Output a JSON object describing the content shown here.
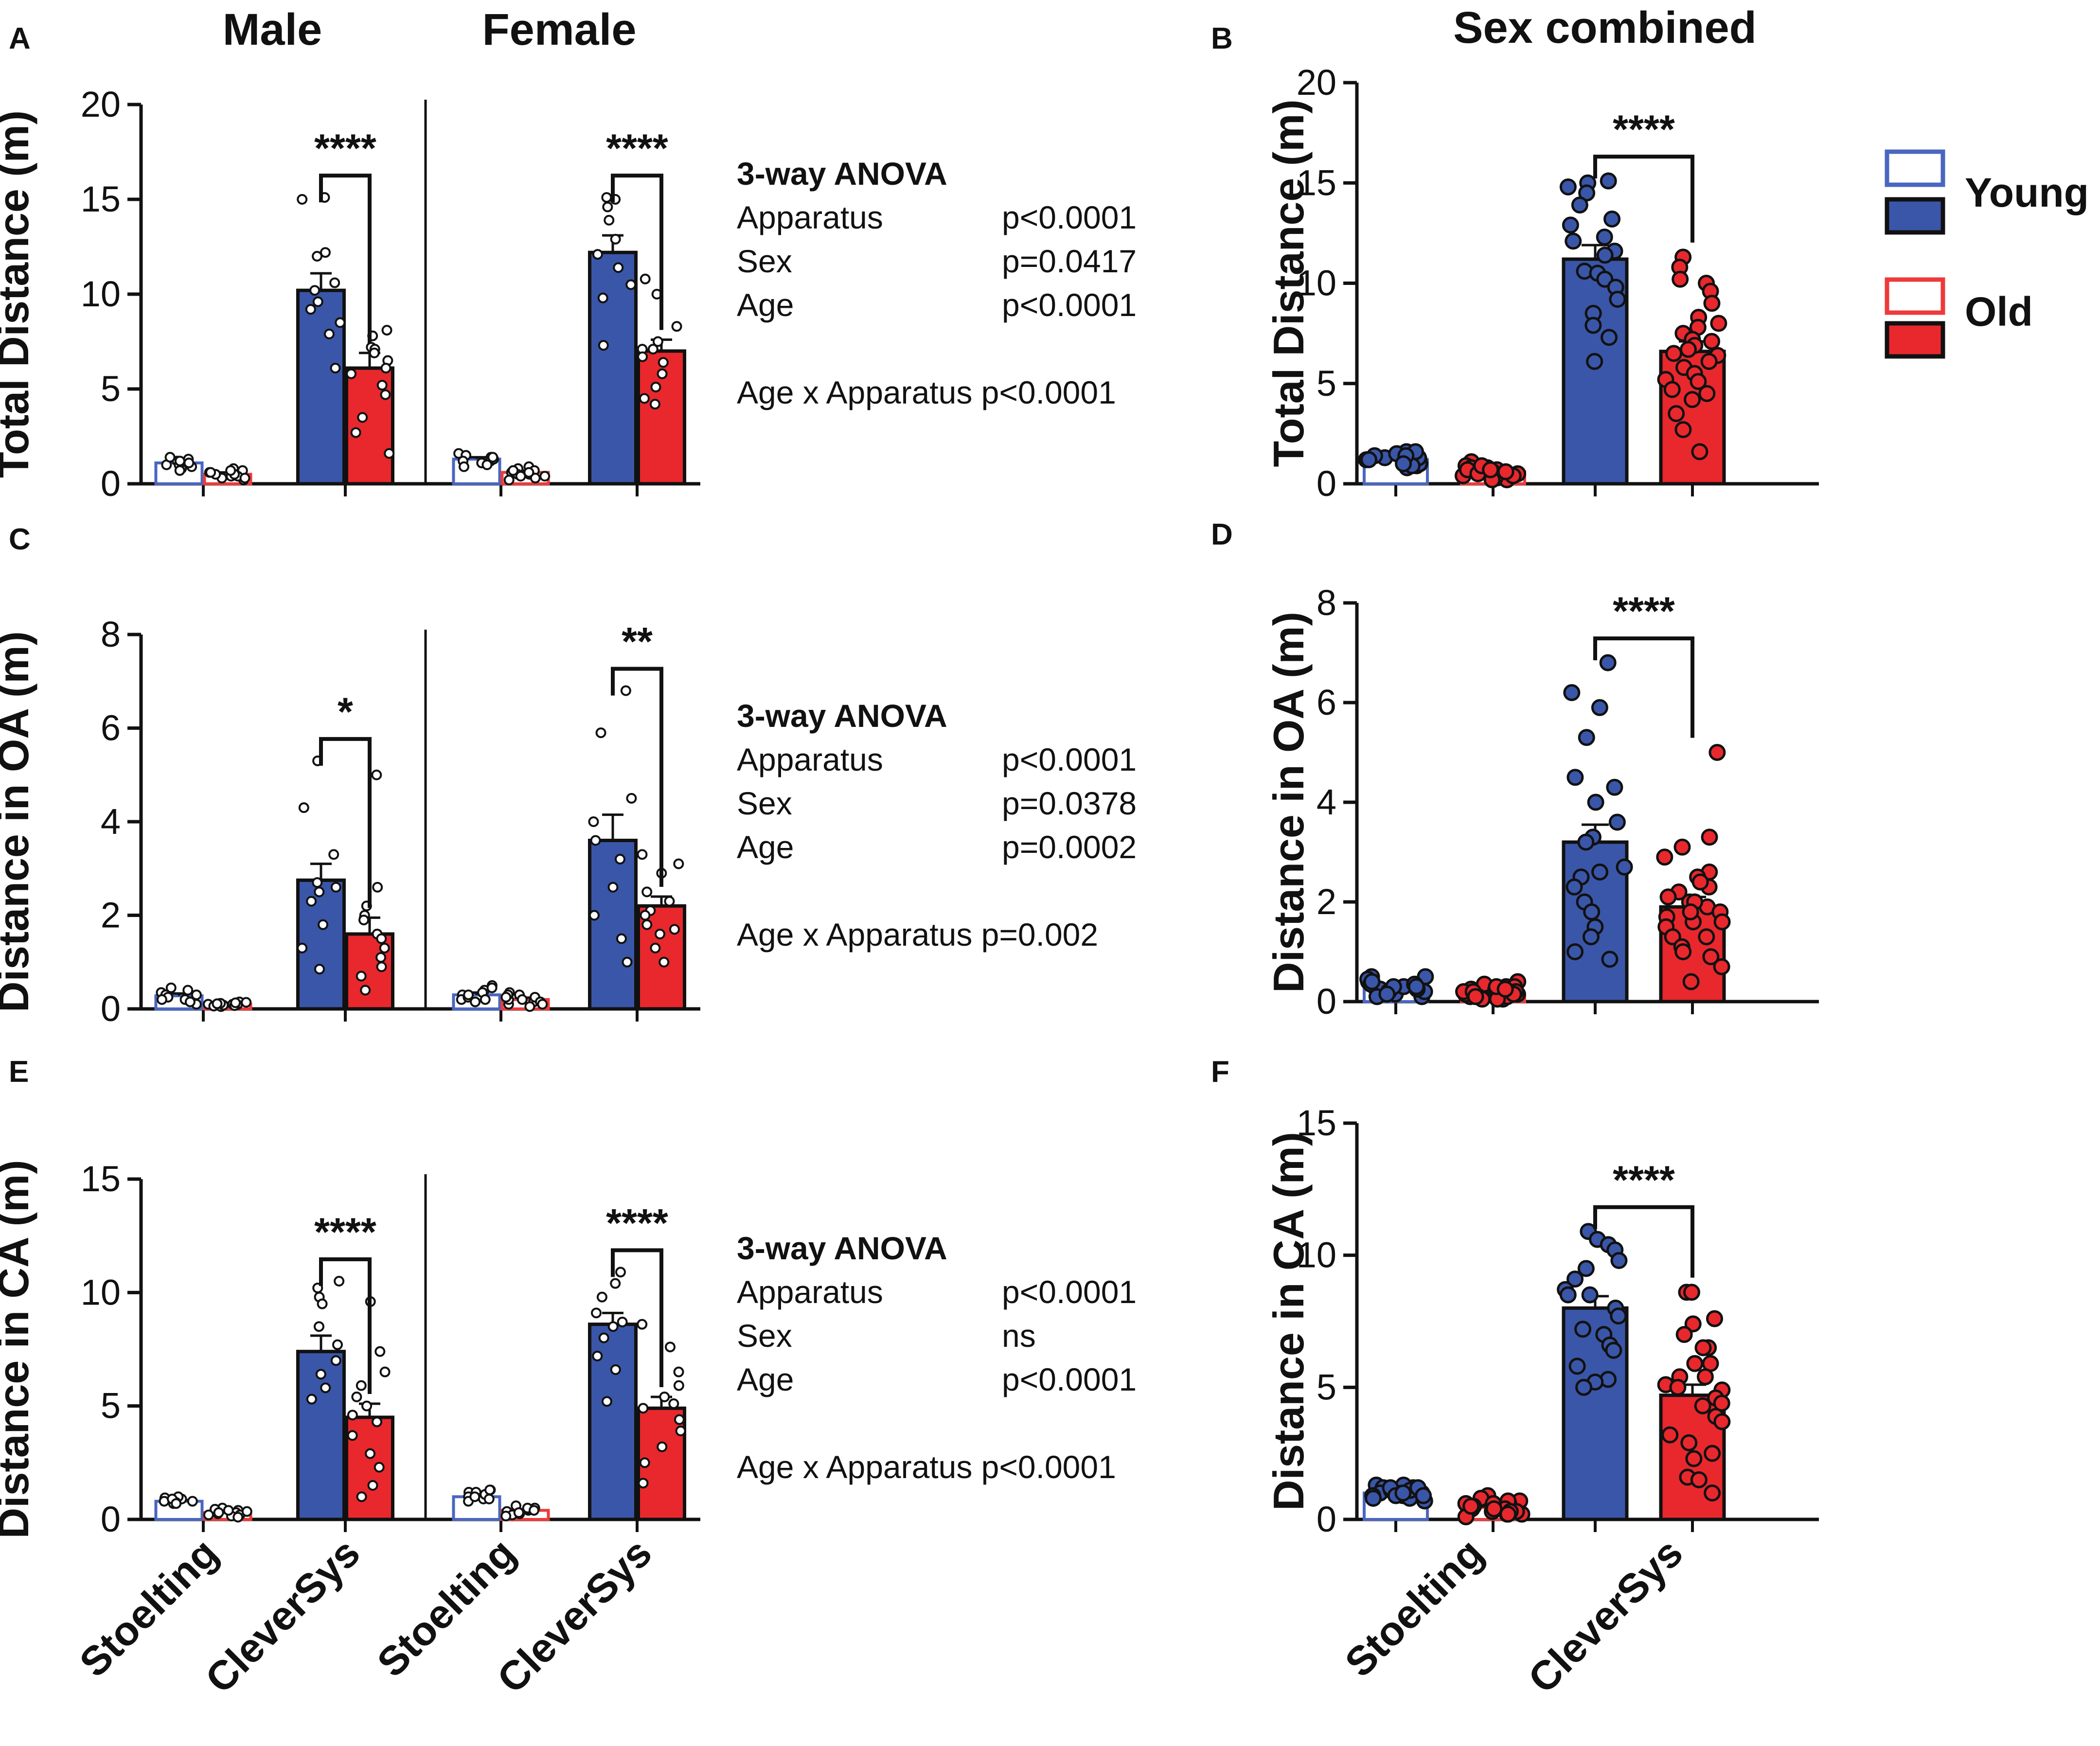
{
  "colors": {
    "young": "#3a56a8",
    "old": "#e8282d",
    "young_outline": "#4a66c0",
    "old_outline": "#ee3a3a",
    "axis": "#111111"
  },
  "legend": {
    "young_label": "Young",
    "old_label": "Old"
  },
  "headers": {
    "male": "Male",
    "female": "Female",
    "combined": "Sex combined"
  },
  "x_categories": [
    "Stoelting",
    "CleverSys",
    "Stoelting",
    "CleverSys"
  ],
  "x_categories_combined": [
    "Stoelting",
    "CleverSys"
  ],
  "anova": [
    {
      "title": "3-way ANOVA",
      "rows": [
        {
          "label": "Apparatus",
          "p": "p<0.0001"
        },
        {
          "label": "Sex",
          "p": "p=0.0417"
        },
        {
          "label": "Age",
          "p": "p<0.0001"
        }
      ],
      "interaction": "Age x Apparatus p<0.0001"
    },
    {
      "title": "3-way ANOVA",
      "rows": [
        {
          "label": "Apparatus",
          "p": "p<0.0001"
        },
        {
          "label": "Sex",
          "p": "p=0.0378"
        },
        {
          "label": "Age",
          "p": "p=0.0002"
        }
      ],
      "interaction": "Age x Apparatus p=0.002"
    },
    {
      "title": "3-way ANOVA",
      "rows": [
        {
          "label": "Apparatus",
          "p": "p<0.0001"
        },
        {
          "label": "Sex",
          "p": "ns"
        },
        {
          "label": "Age",
          "p": "p<0.0001"
        }
      ],
      "interaction": "Age x Apparatus p<0.0001"
    }
  ],
  "chart_data": [
    {
      "panel": "A",
      "type": "bar",
      "ylabel": "Total Distance (m)",
      "ylim": [
        0,
        20
      ],
      "yticks": [
        0,
        5,
        10,
        15,
        20
      ],
      "groups": [
        "Male",
        "Female"
      ],
      "categories": [
        "Stoelting",
        "CleverSys"
      ],
      "series": [
        {
          "name": "Young",
          "values": {
            "Male": [
              1.1,
              10.2
            ],
            "Female": [
              1.3,
              12.2
            ]
          }
        },
        {
          "name": "Old",
          "values": {
            "Male": [
              0.5,
              6.1
            ],
            "Female": [
              0.6,
              7.0
            ]
          }
        }
      ],
      "sem": {
        "Male": [
          [
            0.1,
            0.9
          ],
          [
            0.1,
            0.8
          ]
        ],
        "Female": [
          [
            0.1,
            0.9
          ],
          [
            0.1,
            0.6
          ]
        ]
      },
      "points": {
        "Male": [
          [
            1.0,
            1.3,
            0.8,
            1.2,
            1.4,
            0.9,
            1.1,
            1.0,
            1.2,
            0.7
          ],
          [
            0.4,
            0.6,
            0.3,
            0.7,
            0.5,
            0.2,
            0.8,
            0.4,
            0.6,
            0.5,
            0.3,
            0.7
          ],
          [
            15.0,
            15.1,
            12.2,
            12.0,
            10.6,
            10.2,
            9.6,
            9.2,
            8.5,
            7.9,
            6.1
          ],
          [
            8.1,
            7.8,
            7.2,
            7.1,
            6.9,
            6.5,
            6.1,
            5.8,
            5.2,
            4.7,
            3.5,
            2.7,
            1.6
          ]
        ],
        "Female": [
          [
            1.4,
            1.2,
            1.6,
            1.1,
            1.3,
            1.5,
            1.0,
            1.2,
            1.4,
            0.9
          ],
          [
            0.8,
            0.6,
            0.4,
            0.9,
            0.7,
            0.5,
            0.3,
            0.6,
            0.5,
            0.7,
            0.2,
            0.4
          ],
          [
            15.1,
            15.0,
            14.6,
            13.9,
            12.9,
            12.1,
            11.4,
            10.5,
            9.8,
            7.3
          ],
          [
            10.8,
            10.0,
            8.3,
            7.5,
            7.1,
            7.1,
            6.7,
            6.4,
            5.8,
            5.1,
            4.2,
            4.5
          ]
        ]
      },
      "significance": {
        "Male": "****",
        "Female": "****"
      }
    },
    {
      "panel": "B",
      "type": "bar",
      "ylabel": "Total Distance (m)",
      "ylim": [
        0,
        20
      ],
      "yticks": [
        0,
        5,
        10,
        15,
        20
      ],
      "categories": [
        "Stoelting",
        "CleverSys"
      ],
      "series": [
        {
          "name": "Young",
          "values": [
            1.2,
            11.2
          ]
        },
        {
          "name": "Old",
          "values": [
            0.6,
            6.6
          ]
        }
      ],
      "sem": [
        [
          0.1,
          0.7
        ],
        [
          0.1,
          0.5
        ]
      ],
      "points": [
        [
          1.5,
          1.2,
          1.0,
          1.4,
          1.6,
          0.9,
          1.3,
          1.1,
          1.4,
          0.8,
          1.2,
          1.5,
          1.0,
          1.3,
          1.6,
          1.1,
          0.9,
          1.2,
          1.4,
          1.0
        ],
        [
          1.1,
          0.9,
          0.6,
          0.8,
          0.4,
          0.5,
          0.7,
          0.3,
          0.6,
          0.2,
          0.5,
          0.8,
          0.4,
          0.7,
          0.3,
          0.6,
          0.5,
          0.9,
          0.2,
          0.4,
          0.6,
          0.7
        ],
        [
          15.1,
          15.0,
          14.8,
          14.5,
          13.9,
          13.2,
          12.9,
          12.3,
          12.1,
          11.6,
          11.4,
          10.6,
          10.5,
          10.2,
          9.8,
          9.2,
          8.5,
          7.9,
          7.3,
          6.1
        ],
        [
          11.3,
          10.8,
          10.2,
          10.0,
          9.6,
          9.0,
          8.3,
          8.0,
          7.8,
          7.5,
          7.2,
          7.1,
          6.9,
          6.7,
          6.5,
          6.4,
          6.1,
          5.8,
          5.5,
          5.2,
          5.1,
          4.7,
          4.5,
          4.2,
          3.5,
          2.7,
          1.6
        ]
      ],
      "significance": "****"
    },
    {
      "panel": "C",
      "type": "bar",
      "ylabel": "Distance in OA (m)",
      "ylim": [
        0,
        8
      ],
      "yticks": [
        0,
        2,
        4,
        6,
        8
      ],
      "groups": [
        "Male",
        "Female"
      ],
      "categories": [
        "Stoelting",
        "CleverSys"
      ],
      "series": [
        {
          "name": "Young",
          "values": {
            "Male": [
              0.28,
              2.75
            ],
            "Female": [
              0.3,
              3.6
            ]
          }
        },
        {
          "name": "Old",
          "values": {
            "Male": [
              0.1,
              1.6
            ],
            "Female": [
              0.2,
              2.2
            ]
          }
        }
      ],
      "sem": {
        "Male": [
          [
            0.05,
            0.35
          ],
          [
            0.03,
            0.35
          ]
        ],
        "Female": [
          [
            0.05,
            0.55
          ],
          [
            0.04,
            0.2
          ]
        ]
      },
      "points": {
        "Male": [
          [
            0.35,
            0.2,
            0.45,
            0.3,
            0.1,
            0.4,
            0.25,
            0.15,
            0.3,
            0.2
          ],
          [
            0.1,
            0.05,
            0.15,
            0.08,
            0.12,
            0.1,
            0.06,
            0.14,
            0.09,
            0.11,
            0.07,
            0.13
          ],
          [
            5.3,
            4.3,
            3.3,
            2.7,
            2.5,
            2.3,
            2.6,
            1.8,
            1.3,
            0.85
          ],
          [
            5.0,
            2.6,
            2.0,
            1.6,
            1.5,
            1.3,
            1.1,
            0.9,
            0.7,
            0.4,
            1.9,
            2.2
          ]
        ],
        "Female": [
          [
            0.4,
            0.3,
            0.5,
            0.2,
            0.35,
            0.25,
            0.45,
            0.15,
            0.3,
            0.2
          ],
          [
            0.3,
            0.2,
            0.15,
            0.25,
            0.1,
            0.35,
            0.2,
            0.05,
            0.3,
            0.15,
            0.25,
            0.1
          ],
          [
            6.8,
            5.9,
            4.5,
            4.0,
            3.6,
            3.2,
            2.6,
            2.0,
            1.5,
            1.0
          ],
          [
            3.3,
            3.1,
            2.9,
            2.5,
            2.3,
            2.1,
            2.0,
            1.8,
            1.7,
            1.6,
            1.3,
            1.0
          ]
        ]
      },
      "significance": {
        "Male": "*",
        "Female": "**"
      }
    },
    {
      "panel": "D",
      "type": "bar",
      "ylabel": "Distance in OA (m)",
      "ylim": [
        0,
        8
      ],
      "yticks": [
        0,
        2,
        4,
        6,
        8
      ],
      "categories": [
        "Stoelting",
        "CleverSys"
      ],
      "series": [
        {
          "name": "Young",
          "values": [
            0.28,
            3.2
          ]
        },
        {
          "name": "Old",
          "values": [
            0.15,
            1.9
          ]
        }
      ],
      "sem": [
        [
          0.04,
          0.35
        ],
        [
          0.03,
          0.2
        ]
      ],
      "points": [
        [
          0.5,
          0.4,
          0.3,
          0.2,
          0.1,
          0.45,
          0.35,
          0.25,
          0.15,
          0.3,
          0.2,
          0.4,
          0.1,
          0.3,
          0.5,
          0.2,
          0.35,
          0.25,
          0.15,
          0.3
        ],
        [
          0.4,
          0.3,
          0.2,
          0.1,
          0.05,
          0.35,
          0.25,
          0.15,
          0.3,
          0.2,
          0.1,
          0.25,
          0.15,
          0.05,
          0.3,
          0.2,
          0.1,
          0.15,
          0.25,
          0.05,
          0.2,
          0.1
        ],
        [
          6.8,
          6.2,
          5.9,
          5.3,
          4.5,
          4.3,
          4.0,
          3.6,
          3.3,
          3.2,
          2.7,
          2.6,
          2.5,
          2.3,
          2.0,
          1.8,
          1.5,
          1.3,
          1.0,
          0.85
        ],
        [
          5.0,
          3.3,
          3.1,
          2.9,
          2.6,
          2.5,
          2.3,
          2.2,
          2.1,
          2.0,
          1.9,
          1.8,
          1.7,
          1.6,
          1.6,
          1.5,
          1.3,
          1.3,
          1.1,
          1.0,
          0.9,
          0.7,
          0.4,
          2.0,
          1.8,
          2.4
        ]
      ],
      "significance": "****"
    },
    {
      "panel": "E",
      "type": "bar",
      "ylabel": "Distance in CA (m)",
      "ylim": [
        0,
        15
      ],
      "yticks": [
        0,
        5,
        10,
        15
      ],
      "groups": [
        "Male",
        "Female"
      ],
      "categories": [
        "Stoelting",
        "CleverSys"
      ],
      "series": [
        {
          "name": "Young",
          "values": {
            "Male": [
              0.8,
              7.4
            ],
            "Female": [
              1.0,
              8.6
            ]
          }
        },
        {
          "name": "Old",
          "values": {
            "Male": [
              0.3,
              4.5
            ],
            "Female": [
              0.4,
              4.9
            ]
          }
        }
      ],
      "sem": {
        "Male": [
          [
            0.05,
            0.7
          ],
          [
            0.05,
            0.6
          ]
        ],
        "Female": [
          [
            0.05,
            0.5
          ],
          [
            0.05,
            0.5
          ]
        ]
      },
      "points": {
        "Male": [
          [
            0.9,
            0.8,
            1.0,
            0.7,
            0.85,
            0.95,
            0.75,
            0.8,
            0.9,
            0.7
          ],
          [
            0.4,
            0.3,
            0.2,
            0.5,
            0.35,
            0.25,
            0.45,
            0.15,
            0.3,
            0.2,
            0.4,
            0.1
          ],
          [
            10.5,
            10.2,
            9.8,
            9.5,
            8.5,
            7.7,
            7.0,
            6.4,
            5.8,
            5.3
          ],
          [
            9.6,
            7.4,
            6.5,
            5.9,
            5.4,
            5.0,
            4.6,
            4.3,
            3.7,
            2.9,
            2.3,
            1.5,
            1.0
          ]
        ],
        "Female": [
          [
            1.2,
            1.0,
            1.3,
            0.9,
            1.1,
            0.8,
            1.2,
            1.0,
            0.9,
            1.3
          ],
          [
            0.5,
            0.4,
            0.3,
            0.6,
            0.35,
            0.2,
            0.45,
            0.25,
            0.5,
            0.3,
            0.15,
            0.4
          ],
          [
            10.9,
            10.4,
            9.8,
            9.1,
            8.7,
            8.5,
            8.0,
            7.2,
            6.6,
            5.2
          ],
          [
            8.6,
            7.6,
            6.5,
            5.9,
            5.4,
            5.1,
            4.9,
            4.4,
            3.9,
            3.2,
            2.5,
            1.6
          ]
        ]
      },
      "significance": {
        "Male": "****",
        "Female": "****"
      }
    },
    {
      "panel": "F",
      "type": "bar",
      "ylabel": "Distance in CA (m)",
      "ylim": [
        0,
        15
      ],
      "yticks": [
        0,
        5,
        10,
        15
      ],
      "categories": [
        "Stoelting",
        "CleverSys"
      ],
      "series": [
        {
          "name": "Young",
          "values": [
            1.0,
            8.0
          ]
        },
        {
          "name": "Old",
          "values": [
            0.45,
            4.7
          ]
        }
      ],
      "sem": [
        [
          0.04,
          0.45
        ],
        [
          0.04,
          0.4
        ]
      ],
      "points": [
        [
          1.3,
          1.2,
          1.1,
          1.0,
          0.9,
          0.8,
          1.2,
          1.0,
          0.9,
          1.1,
          1.3,
          0.8,
          1.0,
          1.2,
          0.9,
          1.1,
          0.7,
          1.0,
          1.2,
          0.9
        ],
        [
          0.9,
          0.8,
          0.7,
          0.6,
          0.5,
          0.4,
          0.3,
          0.2,
          0.1,
          0.6,
          0.5,
          0.4,
          0.3,
          0.7,
          0.2,
          0.5,
          0.4,
          0.3,
          0.6,
          0.2,
          0.4,
          0.5
        ],
        [
          10.9,
          10.6,
          10.4,
          10.2,
          9.8,
          9.5,
          9.1,
          8.7,
          8.5,
          8.5,
          8.0,
          7.7,
          7.2,
          7.0,
          6.6,
          6.4,
          5.8,
          5.3,
          5.2,
          5.0
        ],
        [
          8.6,
          8.6,
          7.6,
          7.4,
          7.0,
          6.5,
          6.5,
          5.9,
          5.9,
          5.4,
          5.4,
          5.1,
          5.0,
          4.9,
          4.6,
          4.4,
          4.3,
          3.9,
          3.7,
          3.2,
          2.9,
          2.5,
          2.3,
          1.6,
          1.5,
          1.0
        ]
      ],
      "significance": "****"
    }
  ]
}
